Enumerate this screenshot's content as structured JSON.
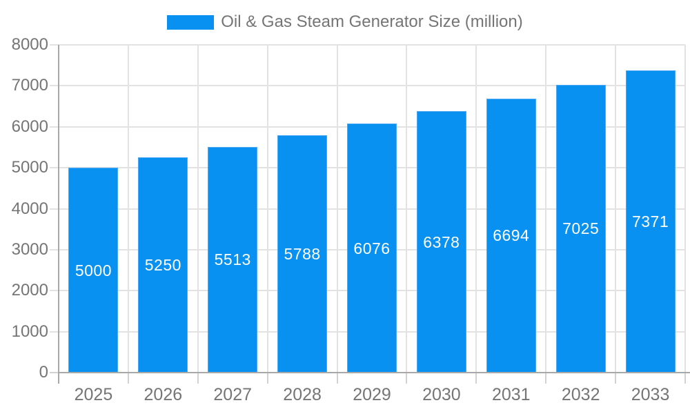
{
  "chart_data": {
    "type": "bar",
    "title": "Oil & Gas Steam Generator Size (million)",
    "categories": [
      "2025",
      "2026",
      "2027",
      "2028",
      "2029",
      "2030",
      "2031",
      "2032",
      "2033"
    ],
    "series": [
      {
        "name": "Oil & Gas Steam Generator Size (million)",
        "values": [
          5000,
          5250,
          5513,
          5788,
          6076,
          6378,
          6694,
          7025,
          7371
        ]
      }
    ],
    "bar_value_labels": [
      "5000",
      "5250",
      "5513",
      "5788",
      "6076",
      "6378",
      "6694",
      "7025",
      "7371"
    ],
    "xlabel": "",
    "ylabel": "",
    "ylim": [
      0,
      8000
    ],
    "y_tick_step": 1000,
    "y_tick_labels": [
      "0",
      "1000",
      "2000",
      "3000",
      "4000",
      "5000",
      "6000",
      "7000",
      "8000"
    ],
    "grid": true,
    "legend_position": "top",
    "colors": {
      "bar": "#0991F2",
      "bar_border": "#4FA9F4",
      "bar_label_text": "#FFFFFF",
      "axis_text": "#757575",
      "legend_text": "#757575",
      "gridline": "#E2E2E2",
      "tick": "#D2D2D2",
      "axis_line": "#A8A8A8",
      "background": "#FFFFFF"
    }
  }
}
